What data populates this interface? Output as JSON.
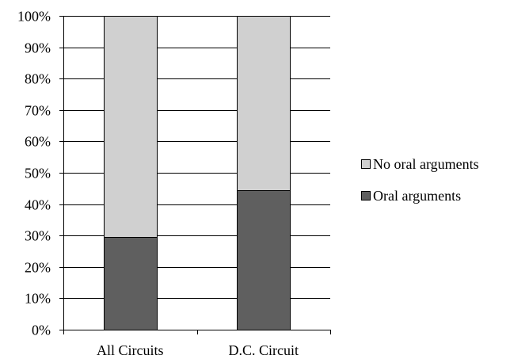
{
  "chart_data": {
    "type": "bar",
    "stacked": true,
    "percent": true,
    "categories": [
      "All Circuits",
      "D.C. Circuit"
    ],
    "series": [
      {
        "name": "Oral arguments",
        "values": [
          29.5,
          44.5
        ],
        "color": "#5f5f5f"
      },
      {
        "name": "No oral arguments",
        "values": [
          70.5,
          55.5
        ],
        "color": "#d0d0d0"
      }
    ],
    "legend_order": [
      1,
      0
    ],
    "ylim": [
      0,
      100
    ],
    "ytick_step": 10,
    "ytick_suffix": "%",
    "grid": true,
    "legend_position": "right",
    "title": "",
    "xlabel": "",
    "ylabel": ""
  }
}
